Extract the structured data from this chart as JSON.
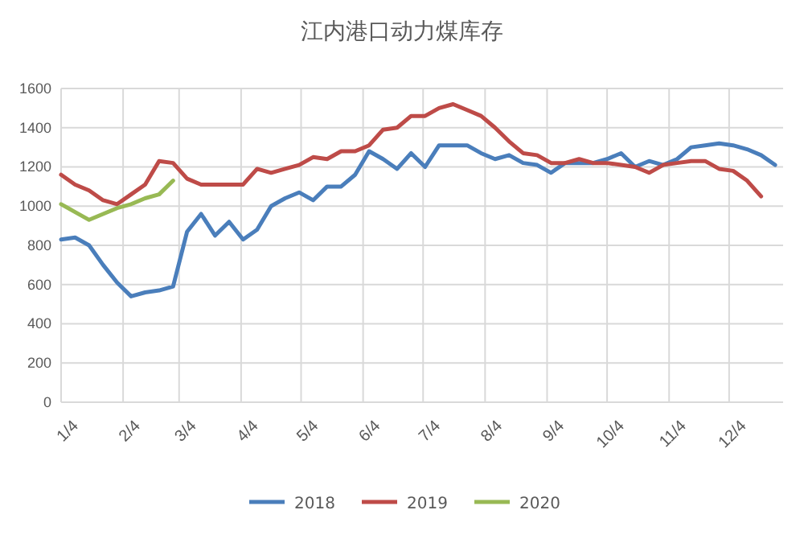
{
  "chart_data": {
    "type": "line",
    "title": "江内港口动力煤库存",
    "x": [
      "--01-04",
      "--01-11",
      "--01-18",
      "--01-25",
      "--02-01",
      "--02-08",
      "--02-15",
      "--02-22",
      "--03-01",
      "--03-08",
      "--03-15",
      "--03-22",
      "--03-29",
      "--04-05",
      "--04-12",
      "--04-19",
      "--04-26",
      "--05-03",
      "--05-10",
      "--05-17",
      "--05-24",
      "--05-31",
      "--06-07",
      "--06-14",
      "--06-21",
      "--06-28",
      "--07-05",
      "--07-12",
      "--07-19",
      "--07-26",
      "--08-02",
      "--08-09",
      "--08-16",
      "--08-23",
      "--08-30",
      "--09-06",
      "--09-13",
      "--09-20",
      "--09-27",
      "--10-04",
      "--10-11",
      "--10-18",
      "--10-25",
      "--11-01",
      "--11-08",
      "--11-15",
      "--11-22",
      "--11-29",
      "--12-06",
      "--12-13",
      "--12-20",
      "--12-27"
    ],
    "series": [
      {
        "name": "2018",
        "color": "#4a7ebb",
        "values": [
          830,
          840,
          800,
          700,
          610,
          540,
          560,
          570,
          590,
          870,
          960,
          850,
          920,
          830,
          880,
          1000,
          1040,
          1070,
          1030,
          1100,
          1100,
          1160,
          1280,
          1240,
          1190,
          1270,
          1200,
          1310,
          1310,
          1310,
          1270,
          1240,
          1260,
          1220,
          1210,
          1170,
          1220,
          1220,
          1220,
          1240,
          1270,
          1200,
          1230,
          1210,
          1240,
          1300,
          1310,
          1320,
          1310,
          1290,
          1260,
          1210
        ]
      },
      {
        "name": "2019",
        "color": "#be4b48",
        "values": [
          1160,
          1110,
          1080,
          1030,
          1010,
          1060,
          1110,
          1230,
          1220,
          1140,
          1110,
          1110,
          1110,
          1110,
          1190,
          1170,
          1190,
          1210,
          1250,
          1240,
          1280,
          1280,
          1310,
          1390,
          1400,
          1460,
          1460,
          1500,
          1520,
          1490,
          1460,
          1400,
          1330,
          1270,
          1260,
          1220,
          1220,
          1240,
          1220,
          1220,
          1210,
          1200,
          1170,
          1210,
          1220,
          1230,
          1230,
          1190,
          1180,
          1130,
          1050,
          null
        ]
      },
      {
        "name": "2020",
        "color": "#98b954",
        "x": [
          "--01-04",
          "--01-11",
          "--01-18",
          "--01-25",
          "--02-01",
          "--02-08",
          "--02-15",
          "--02-22",
          "--03-01"
        ],
        "values": [
          1010,
          970,
          930,
          960,
          990,
          1010,
          1040,
          1060,
          1130
        ]
      }
    ],
    "xlim": [
      "--01-04",
      "--12-31"
    ],
    "xticks": [
      {
        "value": "--01-04",
        "label": "1/4"
      },
      {
        "value": "--02-04",
        "label": "2/4"
      },
      {
        "value": "--03-04",
        "label": "3/4"
      },
      {
        "value": "--04-04",
        "label": "4/4"
      },
      {
        "value": "--05-04",
        "label": "5/4"
      },
      {
        "value": "--06-04",
        "label": "6/4"
      },
      {
        "value": "--07-04",
        "label": "7/4"
      },
      {
        "value": "--08-04",
        "label": "8/4"
      },
      {
        "value": "--09-04",
        "label": "9/4"
      },
      {
        "value": "--10-04",
        "label": "10/4"
      },
      {
        "value": "--11-04",
        "label": "11/4"
      },
      {
        "value": "--12-04",
        "label": "12/4"
      }
    ],
    "ylim": [
      0,
      1600
    ],
    "yticks": [
      0,
      200,
      400,
      600,
      800,
      1000,
      1200,
      1400,
      1600
    ],
    "grid": true,
    "legend": "bottom",
    "marker": "none",
    "line_style": "solid"
  }
}
